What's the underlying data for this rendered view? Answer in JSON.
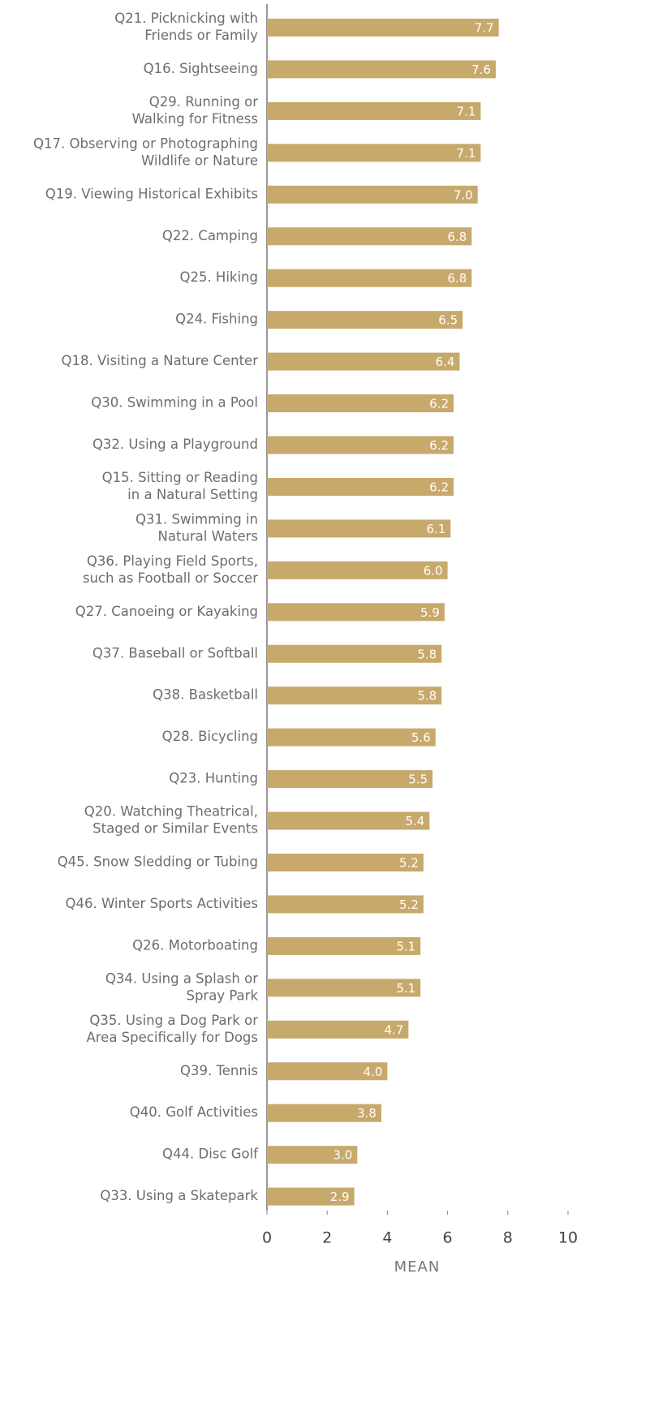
{
  "chart_data": {
    "type": "barh",
    "categories": [
      [
        "Q21. Picknicking with",
        "Friends or Family"
      ],
      [
        "Q16. Sightseeing"
      ],
      [
        "Q29. Running or",
        "Walking for Fitness"
      ],
      [
        "Q17. Observing or Photographing",
        "Wildlife or Nature"
      ],
      [
        "Q19. Viewing Historical Exhibits"
      ],
      [
        "Q22. Camping"
      ],
      [
        "Q25. Hiking"
      ],
      [
        "Q24. Fishing"
      ],
      [
        "Q18. Visiting a Nature Center"
      ],
      [
        "Q30. Swimming in a Pool"
      ],
      [
        "Q32. Using a Playground"
      ],
      [
        "Q15. Sitting or Reading",
        "in a Natural Setting"
      ],
      [
        "Q31. Swimming in",
        "Natural Waters"
      ],
      [
        "Q36. Playing Field Sports,",
        "such as Football or Soccer"
      ],
      [
        "Q27. Canoeing or Kayaking"
      ],
      [
        "Q37. Baseball or Softball"
      ],
      [
        "Q38. Basketball"
      ],
      [
        "Q28. Bicycling"
      ],
      [
        "Q23. Hunting"
      ],
      [
        "Q20. Watching Theatrical,",
        "Staged or Similar Events"
      ],
      [
        "Q45. Snow Sledding or Tubing"
      ],
      [
        "Q46. Winter Sports Activities"
      ],
      [
        "Q26. Motorboating"
      ],
      [
        "Q34. Using a Splash or",
        "Spray Park"
      ],
      [
        "Q35. Using a Dog Park or",
        "Area Specifically for Dogs"
      ],
      [
        "Q39. Tennis"
      ],
      [
        "Q40. Golf Activities"
      ],
      [
        "Q44. Disc Golf"
      ],
      [
        "Q33. Using a Skatepark"
      ]
    ],
    "values": [
      7.7,
      7.6,
      7.1,
      7.1,
      7.0,
      6.8,
      6.8,
      6.5,
      6.4,
      6.2,
      6.2,
      6.2,
      6.1,
      6.0,
      5.9,
      5.8,
      5.8,
      5.6,
      5.5,
      5.4,
      5.2,
      5.2,
      5.1,
      5.1,
      4.7,
      4.0,
      3.8,
      3.0,
      2.9
    ],
    "value_labels": [
      "7.7",
      "7.6",
      "7.1",
      "7.1",
      "7.0",
      "6.8",
      "6.8",
      "6.5",
      "6.4",
      "6.2",
      "6.2",
      "6.2",
      "6.1",
      "6.0",
      "5.9",
      "5.8",
      "5.8",
      "5.6",
      "5.5",
      "5.4",
      "5.2",
      "5.2",
      "5.1",
      "5.1",
      "4.7",
      "4.0",
      "3.8",
      "3.0",
      "2.9"
    ],
    "color": "#c8a96c",
    "xlabel": "MEAN",
    "xlim": [
      0,
      10
    ],
    "xticks": [
      0,
      2,
      4,
      6,
      8,
      10
    ]
  }
}
